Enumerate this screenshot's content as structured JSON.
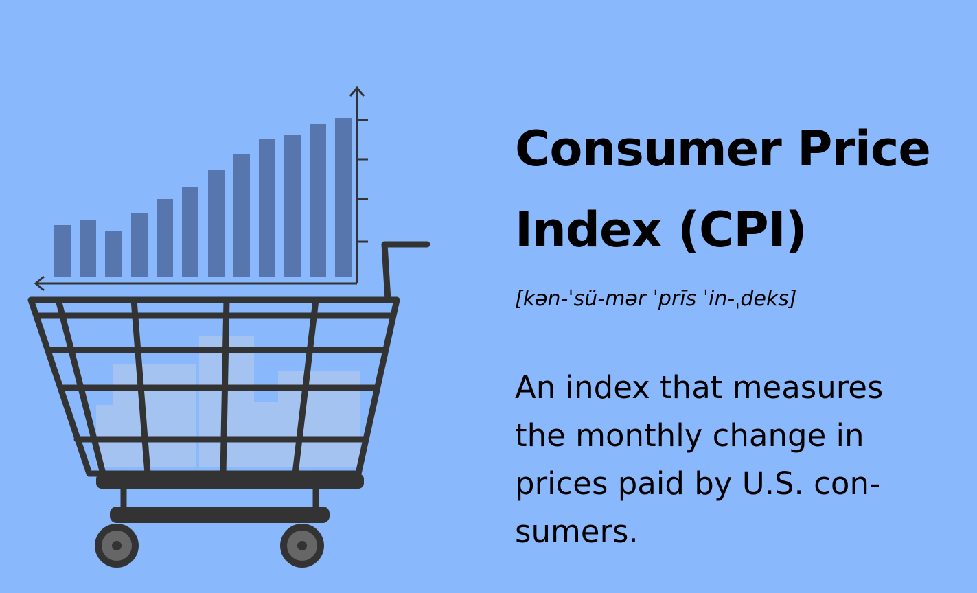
{
  "header": {
    "title_lines": [
      "Consumer Price",
      "Index (CPI)"
    ],
    "pronunciation": "[kən-ˈsü-mər ˈprīs ˈin-ˌdeks]"
  },
  "description_lines": [
    "An index that measures",
    "the monthly change in",
    "prices paid by U.S. con-",
    "sumers."
  ]
}
